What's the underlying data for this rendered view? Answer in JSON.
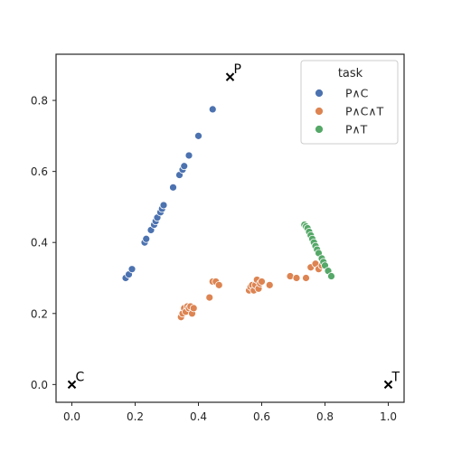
{
  "chart_data": {
    "type": "scatter",
    "xlim": [
      -0.05,
      1.05
    ],
    "ylim": [
      -0.05,
      0.93
    ],
    "x_ticks": [
      0.0,
      0.2,
      0.4,
      0.6,
      0.8,
      1.0
    ],
    "x_tick_labels": [
      "0.0",
      "0.2",
      "0.4",
      "0.6",
      "0.8",
      "1.0"
    ],
    "y_ticks": [
      0.0,
      0.2,
      0.4,
      0.6,
      0.8
    ],
    "y_tick_labels": [
      "0.0",
      "0.2",
      "0.4",
      "0.6",
      "0.8"
    ],
    "grid": false,
    "anchors": [
      {
        "label": "P",
        "x": 0.5,
        "y": 0.866
      },
      {
        "label": "C",
        "x": 0.0,
        "y": 0.0
      },
      {
        "label": "T",
        "x": 1.0,
        "y": 0.0
      }
    ],
    "legend": {
      "title": "task",
      "placement": "top-right"
    },
    "series": [
      {
        "name": "P∧C",
        "color": "#4c72b0",
        "points": [
          [
            0.17,
            0.3
          ],
          [
            0.18,
            0.31
          ],
          [
            0.19,
            0.325
          ],
          [
            0.23,
            0.4
          ],
          [
            0.235,
            0.41
          ],
          [
            0.25,
            0.435
          ],
          [
            0.26,
            0.45
          ],
          [
            0.265,
            0.46
          ],
          [
            0.27,
            0.47
          ],
          [
            0.28,
            0.485
          ],
          [
            0.285,
            0.495
          ],
          [
            0.29,
            0.505
          ],
          [
            0.32,
            0.555
          ],
          [
            0.34,
            0.59
          ],
          [
            0.35,
            0.605
          ],
          [
            0.355,
            0.615
          ],
          [
            0.37,
            0.645
          ],
          [
            0.4,
            0.7
          ],
          [
            0.445,
            0.775
          ]
        ]
      },
      {
        "name": "P∧C∧T",
        "color": "#dd8452",
        "points": [
          [
            0.345,
            0.19
          ],
          [
            0.35,
            0.2
          ],
          [
            0.355,
            0.215
          ],
          [
            0.36,
            0.205
          ],
          [
            0.365,
            0.22
          ],
          [
            0.37,
            0.215
          ],
          [
            0.375,
            0.22
          ],
          [
            0.38,
            0.2
          ],
          [
            0.385,
            0.215
          ],
          [
            0.435,
            0.245
          ],
          [
            0.445,
            0.29
          ],
          [
            0.455,
            0.29
          ],
          [
            0.465,
            0.28
          ],
          [
            0.56,
            0.265
          ],
          [
            0.565,
            0.275
          ],
          [
            0.57,
            0.28
          ],
          [
            0.575,
            0.265
          ],
          [
            0.58,
            0.28
          ],
          [
            0.585,
            0.295
          ],
          [
            0.59,
            0.27
          ],
          [
            0.595,
            0.285
          ],
          [
            0.6,
            0.29
          ],
          [
            0.625,
            0.28
          ],
          [
            0.69,
            0.305
          ],
          [
            0.71,
            0.3
          ],
          [
            0.74,
            0.3
          ],
          [
            0.755,
            0.33
          ],
          [
            0.77,
            0.34
          ],
          [
            0.78,
            0.325
          ],
          [
            0.79,
            0.335
          ]
        ]
      },
      {
        "name": "P∧T",
        "color": "#55a868",
        "points": [
          [
            0.735,
            0.45
          ],
          [
            0.74,
            0.445
          ],
          [
            0.745,
            0.44
          ],
          [
            0.75,
            0.43
          ],
          [
            0.755,
            0.42
          ],
          [
            0.76,
            0.41
          ],
          [
            0.765,
            0.4
          ],
          [
            0.77,
            0.39
          ],
          [
            0.775,
            0.38
          ],
          [
            0.78,
            0.37
          ],
          [
            0.79,
            0.355
          ],
          [
            0.795,
            0.345
          ],
          [
            0.8,
            0.335
          ],
          [
            0.81,
            0.32
          ],
          [
            0.82,
            0.305
          ]
        ]
      }
    ]
  }
}
